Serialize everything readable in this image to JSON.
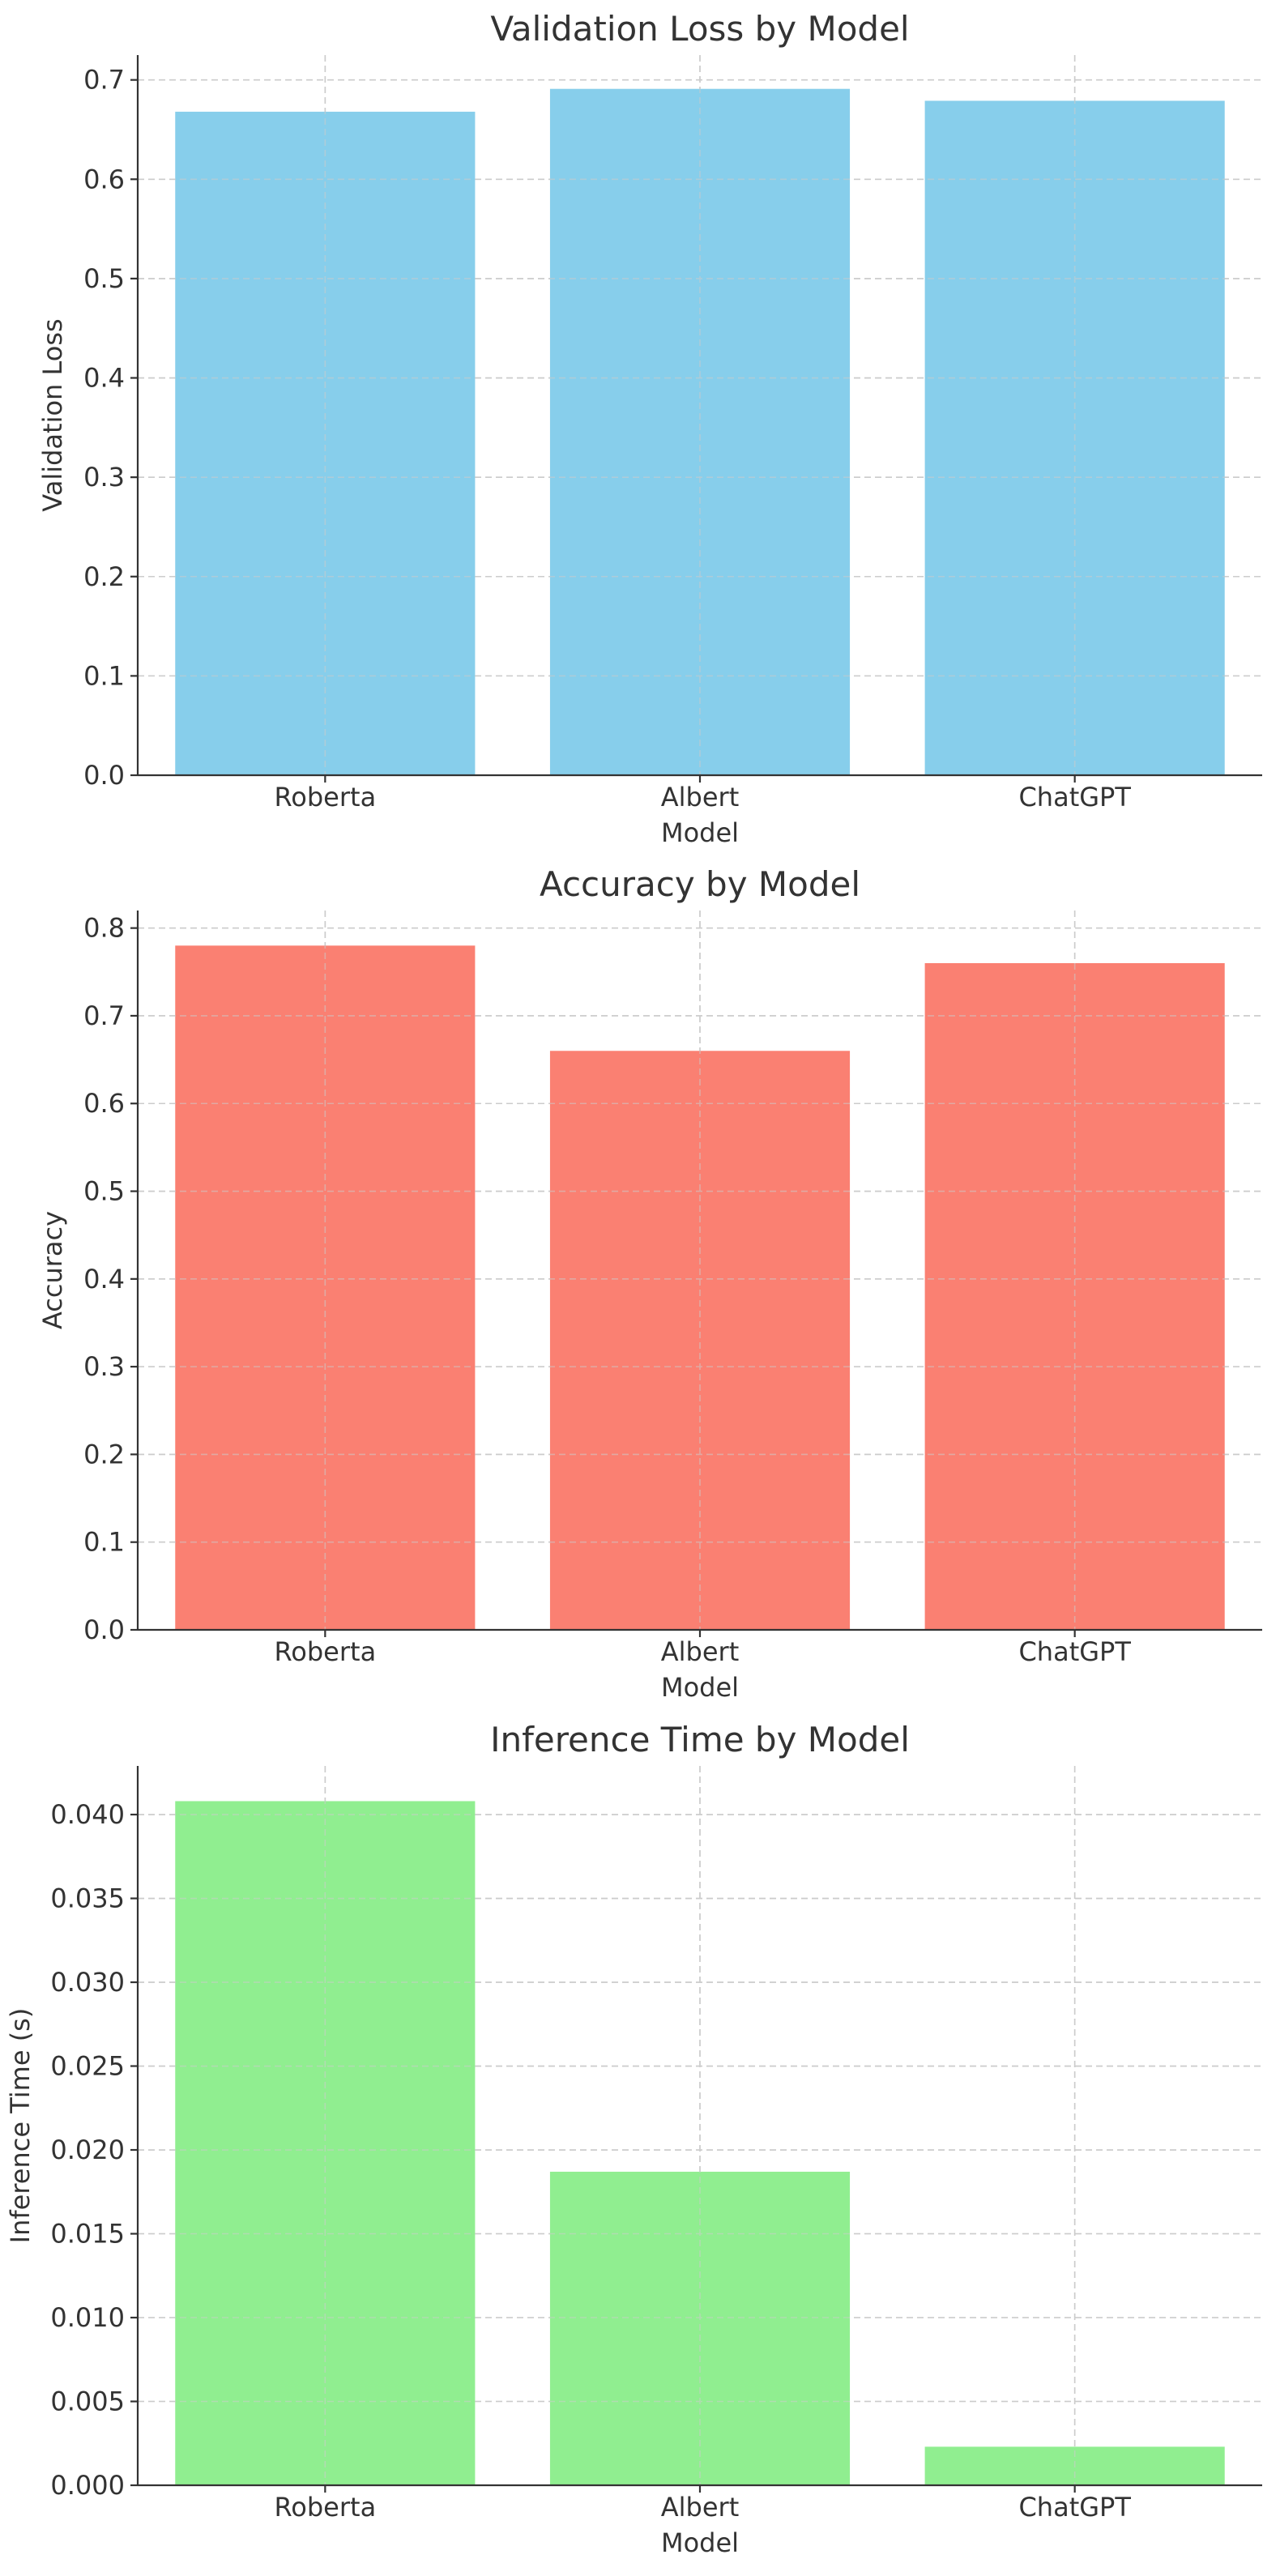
{
  "chart_data": [
    {
      "type": "bar",
      "title": "Validation Loss by Model",
      "xlabel": "Model",
      "ylabel": "Validation Loss",
      "categories": [
        "Roberta",
        "Albert",
        "ChatGPT"
      ],
      "values": [
        0.668,
        0.691,
        0.679
      ],
      "ylim": [
        0,
        0.725
      ],
      "yticks": [
        0.0,
        0.1,
        0.2,
        0.3,
        0.4,
        0.5,
        0.6,
        0.7
      ],
      "ytick_labels": [
        "0.0",
        "0.1",
        "0.2",
        "0.3",
        "0.4",
        "0.5",
        "0.6",
        "0.7"
      ],
      "color": "#87CEEB",
      "grid": true
    },
    {
      "type": "bar",
      "title": "Accuracy by Model",
      "xlabel": "Model",
      "ylabel": "Accuracy",
      "categories": [
        "Roberta",
        "Albert",
        "ChatGPT"
      ],
      "values": [
        0.78,
        0.66,
        0.76
      ],
      "ylim": [
        0,
        0.82
      ],
      "yticks": [
        0.0,
        0.1,
        0.2,
        0.3,
        0.4,
        0.5,
        0.6,
        0.7,
        0.8
      ],
      "ytick_labels": [
        "0.0",
        "0.1",
        "0.2",
        "0.3",
        "0.4",
        "0.5",
        "0.6",
        "0.7",
        "0.8"
      ],
      "color": "#FA8072",
      "grid": true
    },
    {
      "type": "bar",
      "title": "Inference Time by Model",
      "xlabel": "Model",
      "ylabel": "Inference Time (s)",
      "categories": [
        "Roberta",
        "Albert",
        "ChatGPT"
      ],
      "values": [
        0.0408,
        0.0187,
        0.0023
      ],
      "ylim": [
        0,
        0.0429
      ],
      "yticks": [
        0.0,
        0.005,
        0.01,
        0.015,
        0.02,
        0.025,
        0.03,
        0.035,
        0.04
      ],
      "ytick_labels": [
        "0.000",
        "0.005",
        "0.010",
        "0.015",
        "0.020",
        "0.025",
        "0.030",
        "0.035",
        "0.040"
      ],
      "color": "#90EE90",
      "grid": true
    }
  ]
}
